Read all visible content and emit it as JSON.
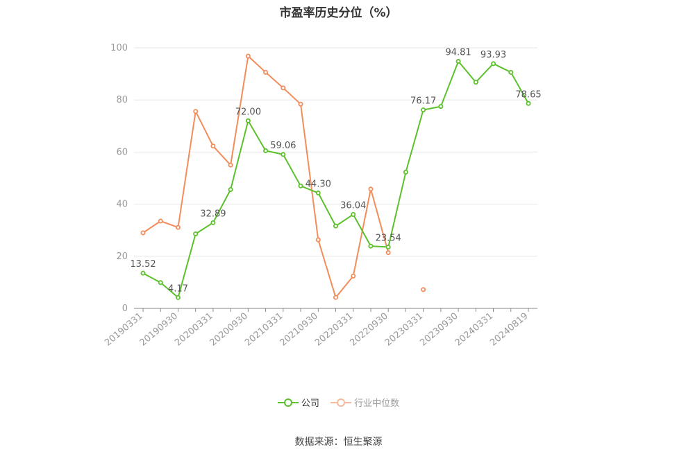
{
  "chart_data": {
    "type": "line",
    "title": "市盈率历史分位（%）",
    "ylim": [
      0,
      100
    ],
    "yticks": [
      0,
      20,
      40,
      60,
      80,
      100
    ],
    "x_tick_labels": [
      "20190331",
      "20190930",
      "20200331",
      "20200930",
      "20210331",
      "20210930",
      "20220331",
      "20220930",
      "20230331",
      "20230930",
      "20240331",
      "20240819"
    ],
    "x": [
      "20190331",
      "20190630",
      "20190930",
      "20191231",
      "20200331",
      "20200630",
      "20200930",
      "20201231",
      "20210331",
      "20210630",
      "20210930",
      "20211231",
      "20220331",
      "20220630",
      "20220930",
      "20221231",
      "20230331",
      "20230630",
      "20230930",
      "20231231",
      "20240331",
      "20240630",
      "20240819"
    ],
    "series": [
      {
        "name": "公司",
        "color": "#5cc02c",
        "values": [
          13.52,
          9.9,
          4.17,
          28.6,
          32.89,
          45.6,
          72.0,
          60.5,
          59.06,
          47.0,
          44.3,
          31.6,
          36.04,
          23.9,
          23.54,
          52.3,
          76.17,
          77.5,
          94.81,
          86.8,
          93.93,
          90.6,
          78.65
        ],
        "labels": [
          "13.52",
          "",
          "4.17",
          "",
          "32.89",
          "",
          "72.00",
          "",
          "59.06",
          "",
          "44.30",
          "",
          "36.04",
          "",
          "23.54",
          "",
          "76.17",
          "",
          "94.81",
          "",
          "93.93",
          "",
          "78.65"
        ]
      },
      {
        "name": "行业中位数",
        "color": "#f28c5a",
        "values": [
          29.0,
          33.5,
          31.1,
          75.6,
          62.3,
          55.0,
          96.8,
          90.6,
          84.6,
          78.4,
          26.3,
          4.2,
          12.4,
          45.8,
          21.4,
          null,
          7.2,
          null,
          null,
          null,
          null,
          null,
          null
        ]
      }
    ],
    "legend_position": "bottom-center",
    "grid": true
  },
  "source": "数据来源：恒生聚源"
}
